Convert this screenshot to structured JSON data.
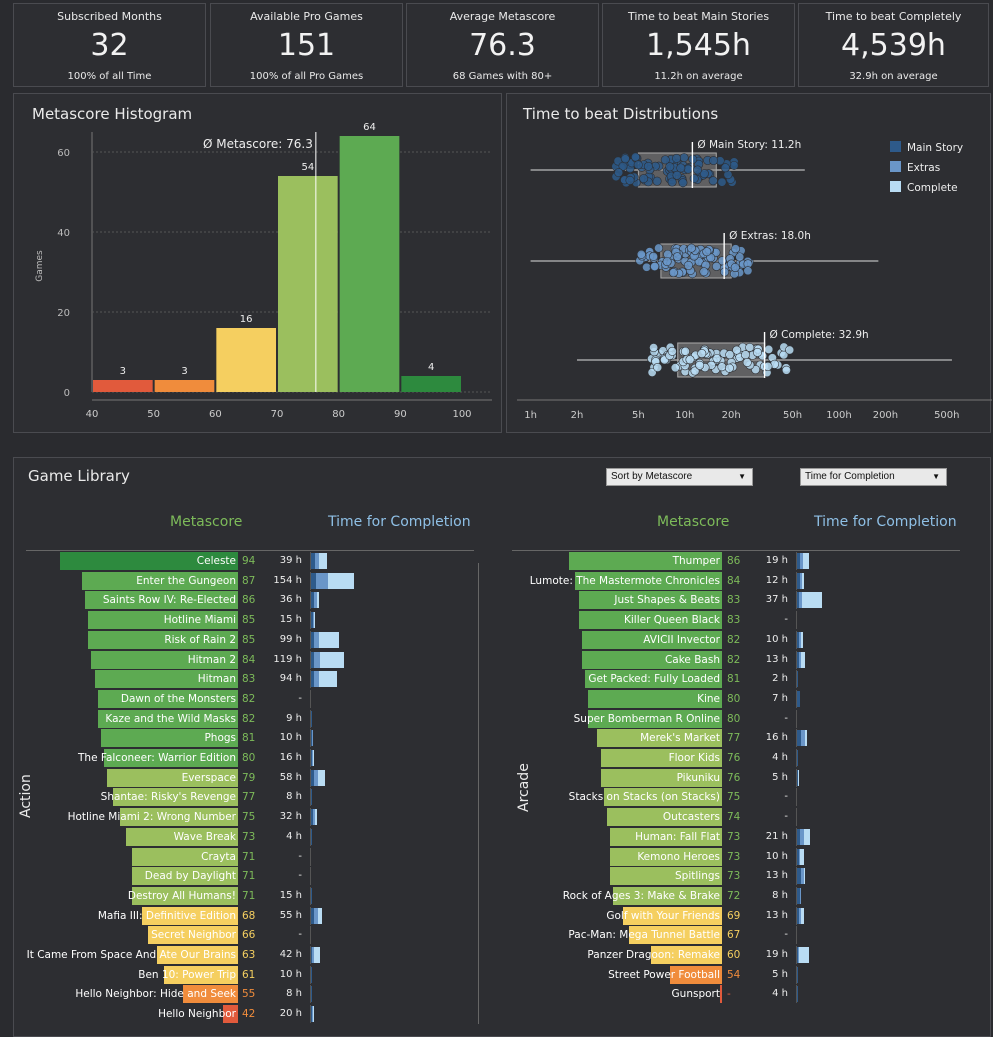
{
  "kpis": [
    {
      "title": "Subscribed Months",
      "value": "32",
      "sub": "100% of all Time"
    },
    {
      "title": "Available Pro Games",
      "value": "151",
      "sub": "100% of all Pro Games"
    },
    {
      "title": "Average Metascore",
      "value": "76.3",
      "sub": "68 Games with 80+"
    },
    {
      "title": "Time to beat Main Stories",
      "value": "1,545h",
      "sub": "11.2h on average"
    },
    {
      "title": "Time to beat Completely",
      "value": "4,539h",
      "sub": "32.9h on average"
    }
  ],
  "colors": {
    "score_red": "#e15a3c",
    "score_orange": "#f08c3c",
    "score_yellow": "#f5cf60",
    "score_lightgreen": "#9bbf5e",
    "score_green": "#5daa52",
    "score_darkgreen": "#2d8a3e",
    "main_story": "#2e5a8a",
    "extras": "#6a96c8",
    "complete": "#b9dcf3",
    "header_green": "#7dbb5a",
    "header_blue": "#8fc0e6"
  },
  "histogram": {
    "title": "Metascore Histogram",
    "ylabel": "Games",
    "avg_label": "Ø Metascore: 76.3",
    "chart_data": {
      "type": "bar",
      "bins": [
        [
          40,
          50
        ],
        [
          50,
          60
        ],
        [
          60,
          70
        ],
        [
          70,
          80
        ],
        [
          80,
          90
        ],
        [
          90,
          100
        ]
      ],
      "values": [
        3,
        3,
        16,
        54,
        64,
        4
      ],
      "xticks": [
        "40",
        "50",
        "60",
        "70",
        "80",
        "90",
        "100"
      ],
      "yticks": [
        "0",
        "20",
        "40",
        "60"
      ],
      "avg": 76.3,
      "ylim": [
        0,
        72
      ]
    }
  },
  "distribution": {
    "title": "Time to beat Distributions",
    "legend": [
      "Main Story",
      "Extras",
      "Complete"
    ],
    "chart_data": {
      "type": "scatter",
      "scale": "log",
      "xticks": [
        "1h",
        "2h",
        "5h",
        "10h",
        "20h",
        "50h",
        "100h",
        "200h",
        "500h"
      ],
      "rows": [
        {
          "name": "Main Story",
          "avg_label": "Ø Main Story: 11.2h",
          "avg": 11.2,
          "q1": 5,
          "q3": 16,
          "min": 1,
          "max": 60
        },
        {
          "name": "Extras",
          "avg_label": "Ø Extras: 18.0h",
          "avg": 18,
          "q1": 7,
          "q3": 20,
          "min": 1,
          "max": 180
        },
        {
          "name": "Complete",
          "avg_label": "Ø Complete: 32.9h",
          "avg": 32.9,
          "q1": 9,
          "q3": 33,
          "min": 2,
          "max": 540
        }
      ]
    }
  },
  "library": {
    "title": "Game Library",
    "sort_label": "Sort by Metascore",
    "mode_label": "Time for Completion",
    "col_metascore": "Metascore",
    "col_time": "Time for Completion",
    "left_genre": "Action",
    "right_genre": "Arcade",
    "left": [
      {
        "name": "Celeste",
        "score": "94",
        "time": "39 h",
        "m": 4,
        "e": 4,
        "c": 8
      },
      {
        "name": "Enter the Gungeon",
        "score": "87",
        "time": "154 h",
        "m": 5,
        "e": 12,
        "c": 26
      },
      {
        "name": "Saints Row IV: Re-Elected",
        "score": "86",
        "time": "36 h",
        "m": 3,
        "e": 3,
        "c": 2
      },
      {
        "name": "Hotline Miami",
        "score": "85",
        "time": "15 h",
        "m": 2,
        "e": 1,
        "c": 1
      },
      {
        "name": "Risk of Rain 2",
        "score": "85",
        "time": "99 h",
        "m": 3,
        "e": 5,
        "c": 20
      },
      {
        "name": "Hitman 2",
        "score": "84",
        "time": "119 h",
        "m": 3,
        "e": 6,
        "c": 24
      },
      {
        "name": "Hitman",
        "score": "83",
        "time": "94 h",
        "m": 3,
        "e": 5,
        "c": 18
      },
      {
        "name": "Dawn of the Monsters",
        "score": "82",
        "time": "-",
        "m": 0,
        "e": 0,
        "c": 0
      },
      {
        "name": "Kaze and the Wild Masks",
        "score": "82",
        "time": "9 h",
        "m": 1,
        "e": 0,
        "c": 0
      },
      {
        "name": "Phogs",
        "score": "81",
        "time": "10 h",
        "m": 1,
        "e": 1,
        "c": 0
      },
      {
        "name": "The Falconeer: Warrior Edition",
        "score": "80",
        "time": "16 h",
        "m": 1,
        "e": 1,
        "c": 1
      },
      {
        "name": "Everspace",
        "score": "79",
        "time": "58 h",
        "m": 3,
        "e": 4,
        "c": 7
      },
      {
        "name": "Shantae: Risky's Revenge",
        "score": "77",
        "time": "8 h",
        "m": 1,
        "e": 0,
        "c": 0
      },
      {
        "name": "Hotline Miami 2: Wrong Number",
        "score": "75",
        "time": "32 h",
        "m": 2,
        "e": 2,
        "c": 2
      },
      {
        "name": "Wave Break",
        "score": "73",
        "time": "4 h",
        "m": 1,
        "e": 0,
        "c": 0
      },
      {
        "name": "Crayta",
        "score": "71",
        "time": "-",
        "m": 0,
        "e": 0,
        "c": 0
      },
      {
        "name": "Dead by Daylight",
        "score": "71",
        "time": "-",
        "m": 0,
        "e": 0,
        "c": 0
      },
      {
        "name": "Destroy All Humans!",
        "score": "71",
        "time": "15 h",
        "m": 1,
        "e": 0,
        "c": 0
      },
      {
        "name": "Mafia III: Definitive Edition",
        "score": "68",
        "time": "55 h",
        "m": 3,
        "e": 4,
        "c": 4
      },
      {
        "name": "Secret Neighbor",
        "score": "66",
        "time": "-",
        "m": 0,
        "e": 0,
        "c": 0
      },
      {
        "name": "It Came From Space And Ate Our Brains",
        "score": "63",
        "time": "42 h",
        "m": 1,
        "e": 2,
        "c": 6
      },
      {
        "name": "Ben 10: Power Trip",
        "score": "61",
        "time": "10 h",
        "m": 1,
        "e": 0,
        "c": 0
      },
      {
        "name": "Hello Neighbor: Hide and Seek",
        "score": "55",
        "time": "8 h",
        "m": 1,
        "e": 0,
        "c": 0
      },
      {
        "name": "Hello Neighbor",
        "score": "42",
        "time": "20 h",
        "m": 1,
        "e": 1,
        "c": 1
      }
    ],
    "right": [
      {
        "name": "Thumper",
        "score": "86",
        "time": "19 h",
        "m": 3,
        "e": 3,
        "c": 6
      },
      {
        "name": "Lumote: The Mastermote Chronicles",
        "score": "84",
        "time": "12 h",
        "m": 3,
        "e": 2,
        "c": 2
      },
      {
        "name": "Just Shapes & Beats",
        "score": "83",
        "time": "37 h",
        "m": 2,
        "e": 3,
        "c": 20
      },
      {
        "name": "Killer Queen Black",
        "score": "83",
        "time": "-",
        "m": 0,
        "e": 0,
        "c": 0
      },
      {
        "name": "AVICII Invector",
        "score": "82",
        "time": "10 h",
        "m": 2,
        "e": 2,
        "c": 2
      },
      {
        "name": "Cake Bash",
        "score": "82",
        "time": "13 h",
        "m": 2,
        "e": 2,
        "c": 4
      },
      {
        "name": "Get Packed: Fully Loaded",
        "score": "81",
        "time": "2 h",
        "m": 1,
        "e": 0,
        "c": 0
      },
      {
        "name": "Kine",
        "score": "80",
        "time": "7 h",
        "m": 3,
        "e": 0,
        "c": 0
      },
      {
        "name": "Super Bomberman R Online",
        "score": "80",
        "time": "-",
        "m": 0,
        "e": 0,
        "c": 0
      },
      {
        "name": "Merek's Market",
        "score": "77",
        "time": "16 h",
        "m": 4,
        "e": 4,
        "c": 2
      },
      {
        "name": "Floor Kids",
        "score": "76",
        "time": "4 h",
        "m": 1,
        "e": 0,
        "c": 0
      },
      {
        "name": "Pikuniku",
        "score": "76",
        "time": "5 h",
        "m": 1,
        "e": 0,
        "c": 1
      },
      {
        "name": "Stacks on Stacks (on Stacks)",
        "score": "75",
        "time": "-",
        "m": 0,
        "e": 0,
        "c": 0
      },
      {
        "name": "Outcasters",
        "score": "74",
        "time": "-",
        "m": 0,
        "e": 0,
        "c": 0
      },
      {
        "name": "Human: Fall Flat",
        "score": "73",
        "time": "21 h",
        "m": 3,
        "e": 4,
        "c": 6
      },
      {
        "name": "Kemono Heroes",
        "score": "73",
        "time": "10 h",
        "m": 2,
        "e": 1,
        "c": 4
      },
      {
        "name": "Spitlings",
        "score": "73",
        "time": "13 h",
        "m": 4,
        "e": 3,
        "c": 1
      },
      {
        "name": "Rock of Ages 3: Make & Brake",
        "score": "72",
        "time": "8 h",
        "m": 3,
        "e": 1,
        "c": 0
      },
      {
        "name": "Golf with Your Friends",
        "score": "69",
        "time": "13 h",
        "m": 2,
        "e": 2,
        "c": 3
      },
      {
        "name": "Pac-Man: Mega Tunnel Battle",
        "score": "67",
        "time": "-",
        "m": 0,
        "e": 0,
        "c": 0
      },
      {
        "name": "Panzer Dragoon: Remake",
        "score": "60",
        "time": "19 h",
        "m": 1,
        "e": 1,
        "c": 10
      },
      {
        "name": "Street Power Football",
        "score": "54",
        "time": "5 h",
        "m": 1,
        "e": 0,
        "c": 0
      },
      {
        "name": "Gunsport",
        "score": "-",
        "time": "4 h",
        "m": 1,
        "e": 0,
        "c": 0
      }
    ]
  }
}
